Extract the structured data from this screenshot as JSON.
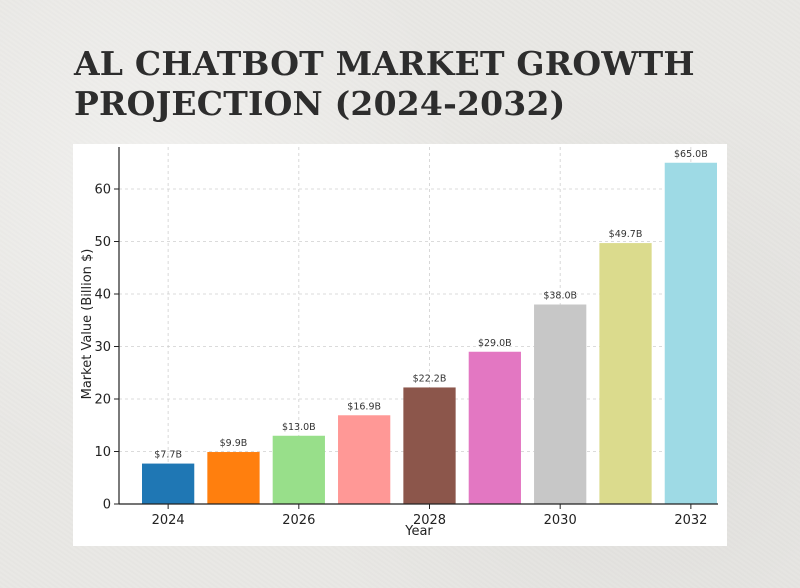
{
  "title": "AL CHATBOT MARKET GROWTH PROJECTION (2024-2032)",
  "chart_data": {
    "type": "bar",
    "categories": [
      "2024",
      "2025",
      "2026",
      "2027",
      "2028",
      "2029",
      "2030",
      "2031",
      "2032"
    ],
    "values": [
      7.7,
      9.9,
      13.0,
      16.9,
      22.2,
      29.0,
      38.0,
      49.7,
      65.0
    ],
    "value_labels": [
      "$7.7B",
      "$9.9B",
      "$13.0B",
      "$16.9B",
      "$22.2B",
      "$29.0B",
      "$38.0B",
      "$49.7B",
      "$65.0B"
    ],
    "colors": [
      "#1f77b4",
      "#ff7f0e",
      "#98df8a",
      "#ff9896",
      "#8c564b",
      "#e377c2",
      "#c7c7c7",
      "#dbdb8d",
      "#9edae5"
    ],
    "xlabel": "Year",
    "ylabel": "Market Value (Billion $)",
    "xticks": [
      "2024",
      "2026",
      "2028",
      "2030",
      "2032"
    ],
    "yticks": [
      0,
      10,
      20,
      30,
      40,
      50,
      60
    ],
    "ylim": [
      0,
      68
    ],
    "grid": true
  }
}
